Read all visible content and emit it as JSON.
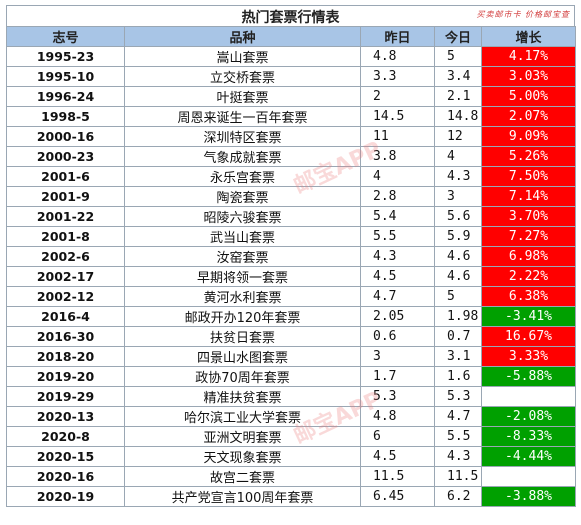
{
  "title": "热门套票行情表",
  "stamp_text": "买卖邮市卡 价格邮宝查",
  "watermark_text": "邮宝APP",
  "headers": [
    "志号",
    "品种",
    "昨日",
    "今日",
    "增长"
  ],
  "colors": {
    "header_bg": "#a8c5e6",
    "positive": "#ff0000",
    "negative": "#00a000"
  },
  "rows": [
    {
      "id": "1995-23",
      "name": "嵩山套票",
      "yesterday": "4.8",
      "today": "5",
      "growth": "4.17%",
      "trend": "pos"
    },
    {
      "id": "1995-10",
      "name": "立交桥套票",
      "yesterday": "3.3",
      "today": "3.4",
      "growth": "3.03%",
      "trend": "pos"
    },
    {
      "id": "1996-24",
      "name": "叶挺套票",
      "yesterday": "2",
      "today": "2.1",
      "growth": "5.00%",
      "trend": "pos"
    },
    {
      "id": "1998-5",
      "name": "周恩来诞生一百年套票",
      "yesterday": "14.5",
      "today": "14.8",
      "growth": "2.07%",
      "trend": "pos"
    },
    {
      "id": "2000-16",
      "name": "深圳特区套票",
      "yesterday": "11",
      "today": "12",
      "growth": "9.09%",
      "trend": "pos"
    },
    {
      "id": "2000-23",
      "name": "气象成就套票",
      "yesterday": "3.8",
      "today": "4",
      "growth": "5.26%",
      "trend": "pos"
    },
    {
      "id": "2001-6",
      "name": "永乐宫套票",
      "yesterday": "4",
      "today": "4.3",
      "growth": "7.50%",
      "trend": "pos"
    },
    {
      "id": "2001-9",
      "name": "陶瓷套票",
      "yesterday": "2.8",
      "today": "3",
      "growth": "7.14%",
      "trend": "pos"
    },
    {
      "id": "2001-22",
      "name": "昭陵六骏套票",
      "yesterday": "5.4",
      "today": "5.6",
      "growth": "3.70%",
      "trend": "pos"
    },
    {
      "id": "2001-8",
      "name": "武当山套票",
      "yesterday": "5.5",
      "today": "5.9",
      "growth": "7.27%",
      "trend": "pos"
    },
    {
      "id": "2002-6",
      "name": "汝窑套票",
      "yesterday": "4.3",
      "today": "4.6",
      "growth": "6.98%",
      "trend": "pos"
    },
    {
      "id": "2002-17",
      "name": "早期将领一套票",
      "yesterday": "4.5",
      "today": "4.6",
      "growth": "2.22%",
      "trend": "pos"
    },
    {
      "id": "2002-12",
      "name": "黄河水利套票",
      "yesterday": "4.7",
      "today": "5",
      "growth": "6.38%",
      "trend": "pos"
    },
    {
      "id": "2016-4",
      "name": "邮政开办120年套票",
      "yesterday": "2.05",
      "today": "1.98",
      "growth": "-3.41%",
      "trend": "neg"
    },
    {
      "id": "2016-30",
      "name": "扶贫日套票",
      "yesterday": "0.6",
      "today": "0.7",
      "growth": "16.67%",
      "trend": "pos"
    },
    {
      "id": "2018-20",
      "name": "四景山水图套票",
      "yesterday": "3",
      "today": "3.1",
      "growth": "3.33%",
      "trend": "pos"
    },
    {
      "id": "2019-20",
      "name": "政协70周年套票",
      "yesterday": "1.7",
      "today": "1.6",
      "growth": "-5.88%",
      "trend": "neg"
    },
    {
      "id": "2019-29",
      "name": "精准扶贫套票",
      "yesterday": "5.3",
      "today": "5.3",
      "growth": "",
      "trend": "none"
    },
    {
      "id": "2020-13",
      "name": "哈尔滨工业大学套票",
      "yesterday": "4.8",
      "today": "4.7",
      "growth": "-2.08%",
      "trend": "neg"
    },
    {
      "id": "2020-8",
      "name": "亚洲文明套票",
      "yesterday": "6",
      "today": "5.5",
      "growth": "-8.33%",
      "trend": "neg"
    },
    {
      "id": "2020-15",
      "name": "天文现象套票",
      "yesterday": "4.5",
      "today": "4.3",
      "growth": "-4.44%",
      "trend": "neg"
    },
    {
      "id": "2020-16",
      "name": "故宫二套票",
      "yesterday": "11.5",
      "today": "11.5",
      "growth": "",
      "trend": "none"
    },
    {
      "id": "2020-19",
      "name": "共产党宣言100周年套票",
      "yesterday": "6.45",
      "today": "6.2",
      "growth": "-3.88%",
      "trend": "neg"
    }
  ]
}
